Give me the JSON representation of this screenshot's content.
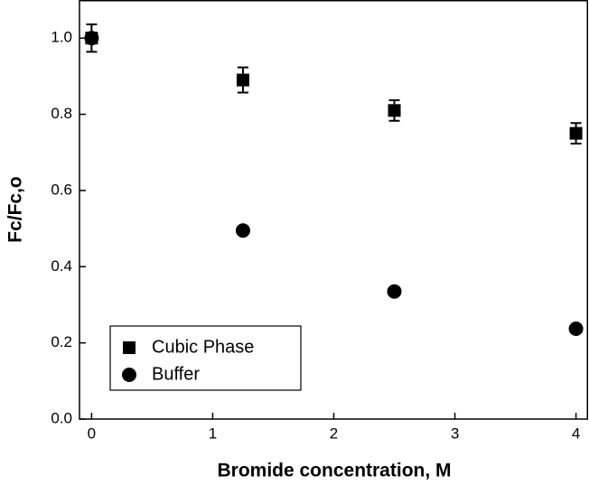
{
  "chart_data": {
    "type": "scatter",
    "xlabel": "Bromide concentration, M",
    "ylabel": "Fc/Fc,o",
    "x": [
      0,
      1.25,
      2.5,
      4
    ],
    "series": [
      {
        "name": "Cubic Phase",
        "color": "#000000",
        "marker": "square",
        "values": [
          1.0,
          0.89,
          0.81,
          0.75
        ],
        "errors": [
          0.036,
          0.033,
          0.027,
          0.027
        ]
      },
      {
        "name": "Buffer",
        "color": "#000000",
        "marker": "circle",
        "values": [
          1.0,
          0.495,
          0.335,
          0.237
        ]
      }
    ],
    "xlim": [
      -0.1,
      4.1
    ],
    "xticks": [
      0,
      1,
      2,
      3,
      4
    ],
    "ylim": [
      0,
      1.1
    ],
    "yticks": [
      {
        "value": 0,
        "label": "0.0"
      },
      0.2,
      0.4,
      0.6,
      0.8,
      {
        "value": 1,
        "label": "1.0"
      }
    ],
    "legend": "lower-left",
    "grid": false
  }
}
